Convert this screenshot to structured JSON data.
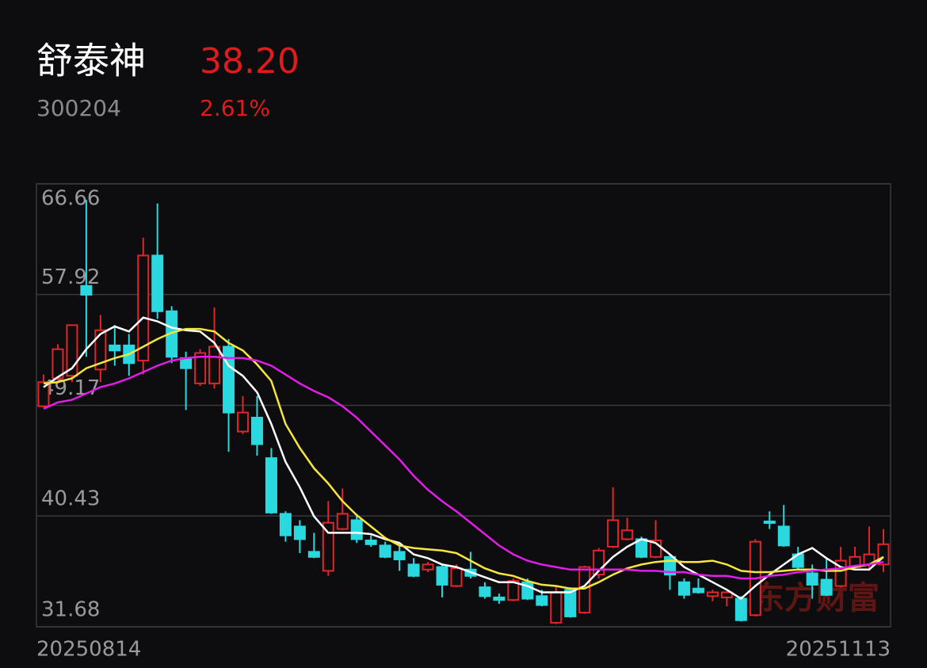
{
  "header": {
    "name": "舒泰神",
    "price": "38.20",
    "code": "300204",
    "change": "2.61%"
  },
  "chart_data": {
    "type": "candlestick",
    "categories": [
      "20250814",
      null,
      null,
      null,
      null,
      null,
      null,
      null,
      null,
      null,
      null,
      null,
      null,
      null,
      null,
      null,
      null,
      null,
      null,
      null,
      null,
      null,
      null,
      null,
      null,
      null,
      null,
      null,
      null,
      null,
      null,
      null,
      null,
      null,
      null,
      null,
      null,
      null,
      null,
      null,
      null,
      null,
      null,
      null,
      null,
      null,
      null,
      null,
      null,
      null,
      null,
      null,
      null,
      null,
      null,
      null,
      null,
      null,
      null,
      "20251113"
    ],
    "open": [
      49.1,
      51.3,
      51.5,
      58.6,
      52.0,
      53.9,
      53.9,
      52.7,
      61.0,
      56.6,
      52.9,
      50.9,
      50.9,
      53.8,
      47.1,
      48.2,
      45.0,
      40.6,
      39.6,
      37.6,
      36.1,
      39.4,
      40.1,
      38.5,
      38.1,
      37.6,
      36.6,
      36.2,
      36.4,
      34.9,
      36.2,
      34.8,
      34.0,
      33.8,
      35.2,
      34.1,
      32.0,
      34.6,
      32.8,
      35.8,
      38.0,
      38.6,
      38.6,
      37.2,
      37.2,
      35.2,
      34.7,
      34.1,
      34.0,
      33.9,
      32.6,
      40.0,
      39.6,
      37.4,
      35.9,
      35.4,
      34.9,
      36.4,
      36.6,
      36.6
    ],
    "high": [
      51.6,
      54.0,
      55.5,
      65.4,
      56.3,
      55.5,
      54.8,
      62.4,
      65.1,
      57.0,
      53.4,
      53.6,
      56.9,
      54.4,
      49.9,
      49.9,
      45.8,
      40.8,
      40.1,
      39.1,
      41.6,
      42.6,
      40.6,
      38.9,
      38.4,
      38.1,
      37.1,
      36.8,
      36.6,
      36.6,
      37.6,
      35.2,
      34.3,
      35.5,
      35.5,
      34.6,
      34.9,
      34.8,
      36.5,
      37.9,
      42.7,
      40.3,
      38.8,
      40.1,
      37.4,
      35.5,
      35.5,
      34.6,
      34.5,
      34.1,
      38.6,
      40.8,
      41.3,
      38.0,
      36.6,
      37.1,
      38.0,
      38.0,
      39.6,
      39.4
    ],
    "low": [
      49.0,
      50.9,
      51.0,
      53.0,
      51.0,
      52.3,
      51.5,
      51.6,
      56.0,
      52.5,
      48.8,
      50.7,
      50.5,
      45.5,
      46.9,
      45.2,
      40.6,
      38.4,
      37.5,
      37.1,
      35.7,
      39.3,
      38.3,
      38.0,
      37.1,
      36.1,
      35.6,
      36.0,
      34.0,
      34.8,
      35.5,
      33.9,
      33.5,
      33.7,
      33.8,
      33.3,
      31.9,
      32.4,
      32.7,
      35.5,
      37.9,
      38.5,
      37.1,
      37.1,
      34.6,
      33.9,
      34.3,
      33.7,
      33.3,
      32.1,
      32.5,
      39.4,
      38.0,
      36.2,
      33.9,
      34.1,
      34.8,
      36.2,
      36.1,
      36.0
    ],
    "close": [
      51.0,
      53.6,
      55.5,
      57.9,
      55.1,
      53.5,
      52.5,
      61.0,
      56.6,
      53.0,
      52.1,
      53.3,
      53.8,
      48.6,
      48.6,
      46.1,
      40.7,
      38.9,
      38.6,
      37.2,
      39.9,
      40.6,
      38.6,
      38.2,
      37.2,
      37.0,
      35.7,
      36.6,
      35.0,
      36.3,
      35.7,
      34.1,
      33.8,
      35.3,
      33.9,
      33.4,
      34.4,
      32.5,
      36.4,
      37.7,
      40.1,
      39.3,
      37.2,
      38.5,
      35.8,
      34.2,
      34.4,
      34.4,
      34.4,
      32.2,
      38.4,
      39.9,
      38.1,
      36.4,
      35.0,
      34.2,
      36.9,
      37.2,
      37.4,
      38.2
    ],
    "up_color": "#e0262b",
    "down_color": "#2ad8e0",
    "lines": [
      {
        "color": "#ffffff",
        "values": [
          50.6,
          51.4,
          52.1,
          53.6,
          54.8,
          55.4,
          55.0,
          56.1,
          55.8,
          55.3,
          55.1,
          55.0,
          54.1,
          52.3,
          51.5,
          50.2,
          47.7,
          44.7,
          42.7,
          40.4,
          39.1,
          39.1,
          39.1,
          39.0,
          38.6,
          38.3,
          37.4,
          37.1,
          36.6,
          36.4,
          36.0,
          35.6,
          35.2,
          35.2,
          34.9,
          34.4,
          34.4,
          34.4,
          34.9,
          36.1,
          37.2,
          38.0,
          38.6,
          38.3,
          37.4,
          36.4,
          35.8,
          35.2,
          34.6,
          33.9,
          34.9,
          35.8,
          36.6,
          37.4,
          37.9,
          37.1,
          36.4,
          36.2,
          36.2,
          37.2
        ]
      },
      {
        "color": "#f5e53c",
        "values": [
          50.9,
          51.0,
          51.3,
          52.1,
          52.5,
          52.9,
          53.2,
          53.8,
          54.4,
          54.9,
          55.2,
          55.2,
          55.0,
          54.1,
          53.5,
          52.4,
          51.1,
          47.7,
          45.8,
          44.2,
          43.0,
          41.6,
          40.5,
          39.6,
          38.7,
          38.1,
          37.9,
          37.8,
          37.7,
          37.5,
          36.9,
          36.3,
          35.9,
          35.7,
          35.3,
          35.0,
          34.9,
          34.7,
          34.7,
          35.2,
          35.8,
          36.3,
          36.6,
          36.8,
          36.9,
          36.8,
          36.8,
          36.9,
          36.6,
          36.1,
          36.0,
          36.0,
          36.1,
          36.2,
          36.2,
          36.1,
          36.1,
          36.4,
          36.6,
          37.2
        ]
      },
      {
        "color": "#e21de6",
        "values": [
          48.9,
          49.4,
          49.6,
          50.1,
          50.6,
          50.9,
          51.3,
          51.8,
          52.3,
          52.7,
          52.9,
          53.0,
          53.0,
          52.9,
          52.9,
          52.7,
          52.3,
          51.6,
          50.9,
          50.3,
          49.8,
          49.1,
          48.2,
          47.1,
          46.0,
          44.9,
          43.6,
          42.5,
          41.6,
          40.8,
          39.9,
          39.0,
          38.1,
          37.4,
          36.9,
          36.6,
          36.4,
          36.2,
          36.2,
          36.2,
          36.2,
          36.2,
          36.1,
          36.1,
          36.0,
          36.0,
          35.8,
          35.7,
          35.7,
          35.5,
          35.5,
          35.7,
          35.8,
          36.0,
          36.1,
          36.2,
          36.3,
          36.5,
          36.6,
          36.8
        ]
      }
    ],
    "ylim": [
      31.68,
      66.66
    ],
    "yticks": [
      66.66,
      57.92,
      49.17,
      40.43,
      31.68
    ],
    "grid": true,
    "watermark": "东方财富"
  }
}
